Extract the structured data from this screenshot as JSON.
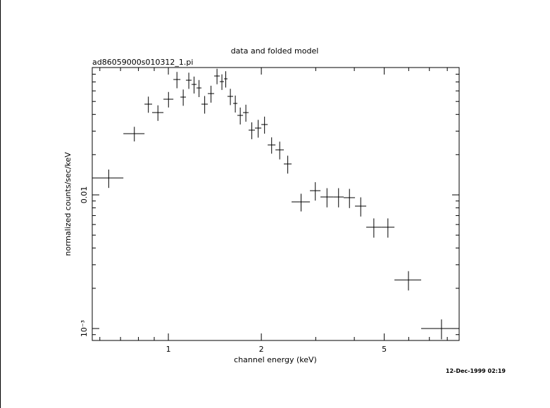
{
  "chart_data": {
    "type": "errorbar",
    "title": "data and folded model",
    "subtitle": "ad86059000s010312_1.pi",
    "x_label": "channel energy (keV)",
    "y_label": "normalized counts/sec/keV",
    "timestamp": "12-Dec-1999 02:19",
    "log_x": true,
    "log_y": true,
    "color": "#000000",
    "xlim": [
      0.567,
      8.74
    ],
    "ylim": [
      0.000814,
      0.0897
    ],
    "xticks": [
      1,
      2,
      5
    ],
    "xminorticks": [
      0.6,
      0.7,
      0.8,
      0.9,
      3,
      4,
      6,
      7,
      8
    ],
    "yticks": [
      0.01,
      {
        "value": 0.001,
        "label": "10⁻³"
      }
    ],
    "yminorticks": [
      0.0009,
      0.002,
      0.003,
      0.004,
      0.005,
      0.006,
      0.007,
      0.008,
      0.009,
      0.02,
      0.03,
      0.04,
      0.05,
      0.06,
      0.07,
      0.08
    ],
    "x_low": [
      0.567,
      0.715,
      0.837,
      0.886,
      0.964,
      1.038,
      1.094,
      1.14,
      1.189,
      1.234,
      1.28,
      1.342,
      1.407,
      1.467,
      1.514,
      1.554,
      1.621,
      1.673,
      1.745,
      1.819,
      1.907,
      2.0,
      2.097,
      2.222,
      2.365,
      2.506,
      2.873,
      3.108,
      3.417,
      3.696,
      4.02,
      4.372,
      4.882,
      5.395,
      6.584
    ],
    "x_high": [
      0.715,
      0.837,
      0.886,
      0.964,
      1.038,
      1.094,
      1.14,
      1.189,
      1.234,
      1.28,
      1.342,
      1.407,
      1.467,
      1.514,
      1.554,
      1.621,
      1.673,
      1.745,
      1.819,
      1.907,
      2.0,
      2.097,
      2.222,
      2.365,
      2.506,
      2.873,
      3.108,
      3.417,
      3.696,
      4.02,
      4.372,
      4.882,
      5.395,
      6.584,
      8.74
    ],
    "values": [
      0.01337,
      0.02871,
      0.04774,
      0.04128,
      0.05197,
      0.07297,
      0.0539,
      0.07209,
      0.06705,
      0.0631,
      0.04774,
      0.05727,
      0.07754,
      0.07037,
      0.07386,
      0.05456,
      0.04833,
      0.03933,
      0.04128,
      0.0305,
      0.03162,
      0.0336,
      0.02364,
      0.02172,
      0.01704,
      0.008858,
      0.01075,
      0.009643,
      0.009643,
      0.009526,
      0.008236,
      0.005728,
      0.005728,
      0.002307,
      0.001
    ],
    "errors": [
      0.0021,
      0.0036,
      0.0066,
      0.0055,
      0.0069,
      0.0102,
      0.0075,
      0.01,
      0.0097,
      0.0092,
      0.0072,
      0.0083,
      0.0103,
      0.0094,
      0.0103,
      0.0076,
      0.007,
      0.0057,
      0.006,
      0.0044,
      0.0048,
      0.0049,
      0.0033,
      0.0033,
      0.0026,
      0.00134,
      0.00169,
      0.00158,
      0.00158,
      0.00156,
      0.00135,
      0.00094,
      0.00094,
      0.00038,
      0.00017
    ]
  }
}
